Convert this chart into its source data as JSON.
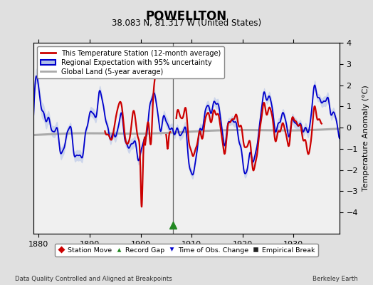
{
  "title": "POWELLTON",
  "subtitle": "38.083 N, 81.317 W (United States)",
  "ylabel": "Temperature Anomaly (°C)",
  "xlabel_bottom_left": "Data Quality Controlled and Aligned at Breakpoints",
  "xlabel_bottom_right": "Berkeley Earth",
  "ylim": [
    -5,
    4
  ],
  "xlim": [
    1879,
    1939
  ],
  "xticks": [
    1880,
    1890,
    1900,
    1910,
    1920,
    1930
  ],
  "yticks": [
    -4,
    -3,
    -2,
    -1,
    0,
    1,
    2,
    3,
    4
  ],
  "bg_color": "#e0e0e0",
  "plot_bg_color": "#f0f0f0",
  "grid_color": "#c8c8c8",
  "red_line_color": "#cc0000",
  "blue_line_color": "#0000cc",
  "blue_fill_color": "#b0c0e8",
  "gray_line_color": "#aaaaaa",
  "legend_items": [
    "This Temperature Station (12-month average)",
    "Regional Expectation with 95% uncertainty",
    "Global Land (5-year average)"
  ],
  "record_gap_x": 1906.3,
  "vertical_line_x": 1906.3,
  "vertical_line_color": "#666666"
}
